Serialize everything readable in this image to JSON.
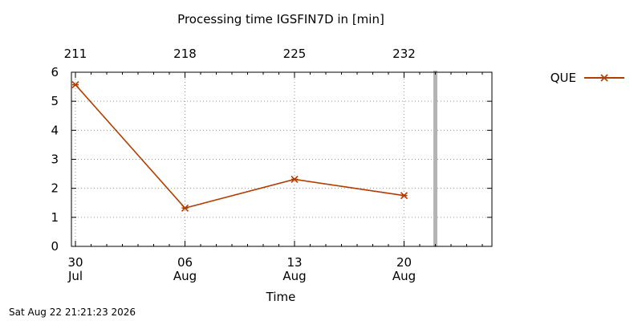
{
  "chart_data": {
    "type": "line",
    "title": "Processing time IGSFIN7D in [min]",
    "xlabel": "Time",
    "ylabel": "",
    "ylim": [
      0,
      6
    ],
    "xlim": [
      "2026-07-30",
      "2026-08-25"
    ],
    "y_ticks": [
      "0",
      "1",
      "2",
      "3",
      "4",
      "5",
      "6"
    ],
    "x_ticks_bottom": [
      {
        "date": "2026-07-30",
        "day": "30",
        "month": "Jul"
      },
      {
        "date": "2026-08-06",
        "day": "06",
        "month": "Aug"
      },
      {
        "date": "2026-08-13",
        "day": "13",
        "month": "Aug"
      },
      {
        "date": "2026-08-20",
        "day": "20",
        "month": "Aug"
      }
    ],
    "x_ticks_top": [
      {
        "date": "2026-07-30",
        "label": "211"
      },
      {
        "date": "2026-08-06",
        "label": "218"
      },
      {
        "date": "2026-08-13",
        "label": "225"
      },
      {
        "date": "2026-08-20",
        "label": "232"
      }
    ],
    "grid": true,
    "legend_position": "top-right",
    "current_marker_date": "2026-08-22",
    "series": [
      {
        "name": "QUE",
        "color": "#b33c00",
        "marker": "asterisk",
        "x": [
          "2026-07-30",
          "2026-08-06",
          "2026-08-13",
          "2026-08-20"
        ],
        "values": [
          5.57,
          1.32,
          2.31,
          1.75
        ]
      }
    ]
  },
  "footer": {
    "timestamp": "Sat Aug 22 21:21:23 2026"
  }
}
